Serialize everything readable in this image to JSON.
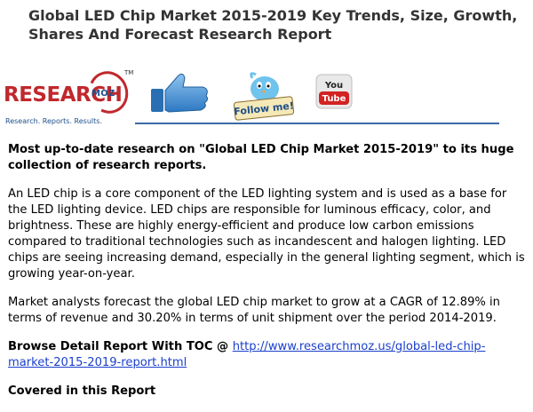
{
  "document": {
    "title": "Global LED Chip Market 2015-2019 Key Trends, Size, Growth, Shares And Forecast Research Report",
    "logo": {
      "main": "RESEARCH",
      "moz": "MOZ",
      "tm": "TM",
      "tagline": "Research. Reports. Results."
    },
    "social": {
      "thumb_icon": "thumbs-up-icon",
      "twitter_text": "Follow me!",
      "youtube_you": "You",
      "youtube_tube": "Tube"
    },
    "intro": "Most up-to-date research on \"Global LED Chip Market 2015-2019\" to its huge collection of research reports.",
    "paragraph1": "An LED chip is a core component of the LED lighting system and is used as a base for the LED lighting device. LED chips are responsible for luminous efficacy, color, and brightness. These are highly energy-efficient and produce low carbon emissions compared to traditional technologies such as incandescent and halogen lighting. LED chips are seeing increasing demand, especially in the general lighting segment, which is growing year-on-year.",
    "paragraph2": "Market analysts forecast the global LED chip market to grow at a CAGR of 12.89% in terms of revenue and 30.20% in terms of unit shipment over the period 2014-2019.",
    "browse_label": "Browse Detail Report With TOC @ ",
    "browse_link": "http://www.researchmoz.us/global-led-chip-market-2015-2019-report.html",
    "covered": "Covered in this Report"
  },
  "colors": {
    "title": "#333333",
    "logo_red": "#c0282d",
    "logo_blue": "#1e4f8a",
    "link": "#1a3fcc",
    "rule": "#3c6aa3"
  }
}
